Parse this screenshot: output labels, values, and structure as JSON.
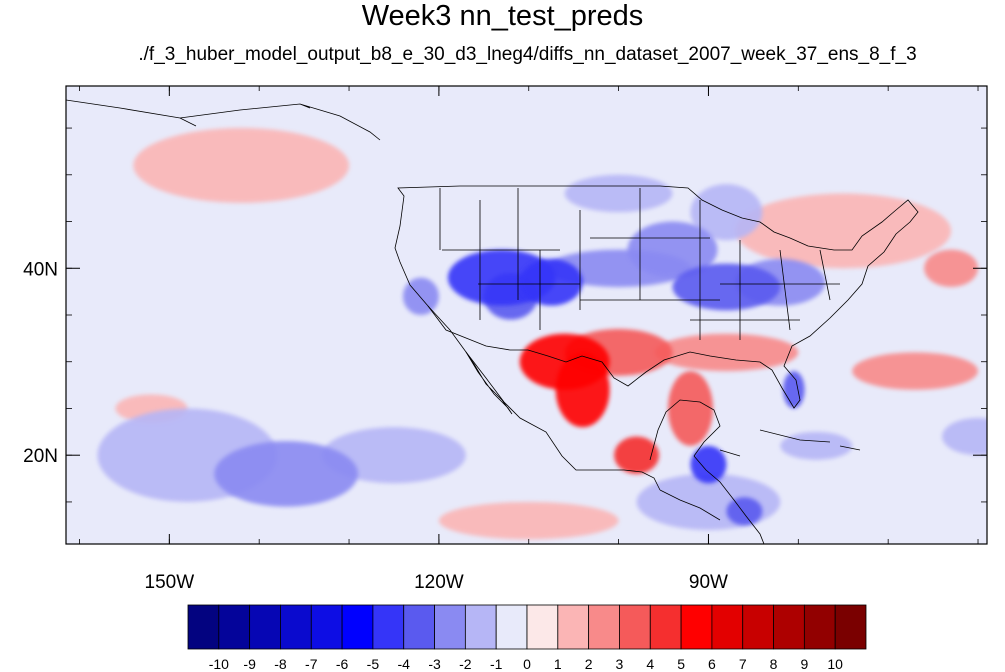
{
  "title": "Week3 nn_test_preds",
  "subtitle": "./f_3_huber_model_output_b8_e_30_d3_lneg4/diffs_nn_dataset_2007_week_37_ens_8_f_3",
  "map": {
    "lon_range": [
      -161.5,
      -59
    ],
    "lat_range": [
      10.5,
      59.5
    ],
    "lon_ticks": [
      {
        "value": -150,
        "label": "150W"
      },
      {
        "value": -120,
        "label": "120W"
      },
      {
        "value": -90,
        "label": "90W"
      }
    ],
    "lat_ticks": [
      {
        "value": 40,
        "label": "40N"
      },
      {
        "value": 20,
        "label": "20N"
      }
    ],
    "background_color": "#e8eafa",
    "anomalies": [
      {
        "lon": -113,
        "lat": 39,
        "rlon": 6,
        "rlat": 3,
        "level": -5
      },
      {
        "lon": -107.5,
        "lat": 38.5,
        "rlon": 3.5,
        "rlat": 2.5,
        "level": -5
      },
      {
        "lon": -112,
        "lat": 37,
        "rlon": 3,
        "rlat": 2.5,
        "level": -4
      },
      {
        "lon": -100,
        "lat": 40,
        "rlon": 8,
        "rlat": 2,
        "level": -3
      },
      {
        "lon": -94,
        "lat": 42,
        "rlon": 5,
        "rlat": 3,
        "level": -3
      },
      {
        "lon": -88,
        "lat": 38,
        "rlon": 6,
        "rlat": 2.5,
        "level": -4
      },
      {
        "lon": -82,
        "lat": 38.5,
        "rlon": 5,
        "rlat": 2.5,
        "level": -3
      },
      {
        "lon": -122,
        "lat": 37,
        "rlon": 2,
        "rlat": 2,
        "level": -3
      },
      {
        "lon": -106,
        "lat": 30,
        "rlon": 5,
        "rlat": 3,
        "level": 5
      },
      {
        "lon": -104,
        "lat": 27,
        "rlon": 3,
        "rlat": 4,
        "level": 5
      },
      {
        "lon": -100,
        "lat": 31,
        "rlon": 6,
        "rlat": 2.5,
        "level": 3
      },
      {
        "lon": -88,
        "lat": 31,
        "rlon": 8,
        "rlat": 2,
        "level": 2
      },
      {
        "lon": -67,
        "lat": 29,
        "rlon": 7,
        "rlat": 2,
        "level": 2
      },
      {
        "lon": -98,
        "lat": 20,
        "rlon": 2.5,
        "rlat": 2,
        "level": 4
      },
      {
        "lon": -92,
        "lat": 25,
        "rlon": 2.5,
        "rlat": 4,
        "level": 3
      },
      {
        "lon": -90,
        "lat": 19,
        "rlon": 2,
        "rlat": 2,
        "level": -5
      },
      {
        "lon": -86,
        "lat": 14,
        "rlon": 2,
        "rlat": 1.5,
        "level": -4
      },
      {
        "lon": -80.5,
        "lat": 27,
        "rlon": 1.2,
        "rlat": 2,
        "level": -4
      },
      {
        "lon": -137,
        "lat": 18,
        "rlon": 8,
        "rlat": 3.5,
        "level": -3
      },
      {
        "lon": -148,
        "lat": 20,
        "rlon": 10,
        "rlat": 5,
        "level": -2
      },
      {
        "lon": -125,
        "lat": 20,
        "rlon": 8,
        "rlat": 3,
        "level": -2
      },
      {
        "lon": -90,
        "lat": 15,
        "rlon": 8,
        "rlat": 3,
        "level": -2
      },
      {
        "lon": -110,
        "lat": 13,
        "rlon": 10,
        "rlat": 2,
        "level": 1
      },
      {
        "lon": -142,
        "lat": 51,
        "rlon": 12,
        "rlat": 4,
        "level": 1
      },
      {
        "lon": -63,
        "lat": 40,
        "rlon": 3,
        "rlat": 2,
        "level": 2
      },
      {
        "lon": -75,
        "lat": 44,
        "rlon": 12,
        "rlat": 4,
        "level": 1
      },
      {
        "lon": -78,
        "lat": 21,
        "rlon": 4,
        "rlat": 1.5,
        "level": -2
      },
      {
        "lon": -60,
        "lat": 22,
        "rlon": 4,
        "rlat": 2,
        "level": -2
      },
      {
        "lon": -100,
        "lat": 48,
        "rlon": 6,
        "rlat": 2,
        "level": -2
      },
      {
        "lon": -88,
        "lat": 46,
        "rlon": 4,
        "rlat": 3,
        "level": -2
      },
      {
        "lon": -116,
        "lat": 33,
        "rlon": 2,
        "rlat": 1.5,
        "level": -1
      },
      {
        "lon": -152,
        "lat": 25,
        "rlon": 4,
        "rlat": 1.5,
        "level": 1
      }
    ]
  },
  "colorbar": {
    "levels": [
      -10,
      -9,
      -8,
      -7,
      -6,
      -5,
      -4,
      -3,
      -2,
      -1,
      0,
      1,
      2,
      3,
      4,
      5,
      6,
      7,
      8,
      9,
      10
    ],
    "labels": [
      "-10",
      "-9",
      "-8",
      "-7",
      "-6",
      "-5",
      "-4",
      "-3",
      "-2",
      "-1",
      "0",
      "1",
      "2",
      "3",
      "4",
      "5",
      "6",
      "7",
      "8",
      "9",
      "10"
    ],
    "colors": [
      "#030380",
      "#04049a",
      "#0606b4",
      "#0a0ace",
      "#0d0de4",
      "#0000ff",
      "#3535f8",
      "#5a5aef",
      "#8a8af2",
      "#b6b6f6",
      "#e8eafa",
      "#fce8e8",
      "#fbb5b5",
      "#f88a8a",
      "#f55a5a",
      "#f52f2f",
      "#ff0000",
      "#e30000",
      "#c80000",
      "#ad0000",
      "#920000",
      "#7a0000"
    ]
  }
}
